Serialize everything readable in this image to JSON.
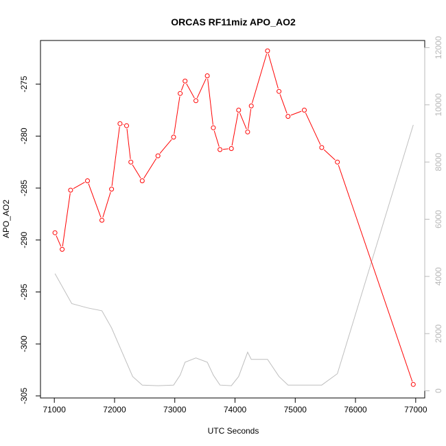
{
  "chart_data": {
    "type": "line",
    "title": "ORCAS RF11miz APO_AO2",
    "xlabel": "UTC Seconds",
    "ylabel": "APO_AO2",
    "xlim": [
      70770,
      77150
    ],
    "ylim": [
      -305.2,
      -270.8
    ],
    "y2lim": [
      -250,
      12250
    ],
    "x_ticks": [
      71000,
      72000,
      73000,
      74000,
      75000,
      76000,
      77000
    ],
    "y_ticks": [
      -305,
      -300,
      -295,
      -290,
      -285,
      -280,
      -275
    ],
    "y2_ticks": [
      0,
      2000,
      4000,
      6000,
      8000,
      10000,
      12000
    ],
    "series": [
      {
        "color": "#ff0000",
        "markers": "open-circle",
        "points": [
          [
            71010,
            -289.3
          ],
          [
            71130,
            -290.9
          ],
          [
            71270,
            -285.2
          ],
          [
            71550,
            -284.3
          ],
          [
            71790,
            -288.1
          ],
          [
            71950,
            -285.1
          ],
          [
            72090,
            -278.8
          ],
          [
            72200,
            -279.0
          ],
          [
            72270,
            -282.5
          ],
          [
            72460,
            -284.3
          ],
          [
            72720,
            -281.9
          ],
          [
            72980,
            -280.1
          ],
          [
            73090,
            -275.9
          ],
          [
            73170,
            -274.7
          ],
          [
            73350,
            -276.6
          ],
          [
            73540,
            -274.2
          ],
          [
            73640,
            -279.2
          ],
          [
            73750,
            -281.3
          ],
          [
            73940,
            -281.2
          ],
          [
            74060,
            -277.5
          ],
          [
            74210,
            -279.6
          ],
          [
            74270,
            -277.1
          ],
          [
            74540,
            -271.8
          ],
          [
            74730,
            -275.7
          ],
          [
            74880,
            -278.1
          ],
          [
            75150,
            -277.5
          ],
          [
            75440,
            -281.1
          ],
          [
            75700,
            -282.5
          ],
          [
            76960,
            -303.9
          ]
        ]
      },
      {
        "color": "#bebebe",
        "axis": "right",
        "points": [
          [
            71010,
            4100
          ],
          [
            71290,
            3050
          ],
          [
            71550,
            2900
          ],
          [
            71790,
            2800
          ],
          [
            71950,
            2200
          ],
          [
            72300,
            500
          ],
          [
            72460,
            200
          ],
          [
            72720,
            180
          ],
          [
            72980,
            200
          ],
          [
            73090,
            550
          ],
          [
            73170,
            1000
          ],
          [
            73350,
            1150
          ],
          [
            73540,
            1000
          ],
          [
            73640,
            550
          ],
          [
            73750,
            200
          ],
          [
            73940,
            180
          ],
          [
            74060,
            500
          ],
          [
            74210,
            1350
          ],
          [
            74270,
            1100
          ],
          [
            74540,
            1100
          ],
          [
            74730,
            500
          ],
          [
            74880,
            200
          ],
          [
            75150,
            200
          ],
          [
            75440,
            200
          ],
          [
            75700,
            600
          ],
          [
            76960,
            9300
          ]
        ]
      }
    ]
  }
}
